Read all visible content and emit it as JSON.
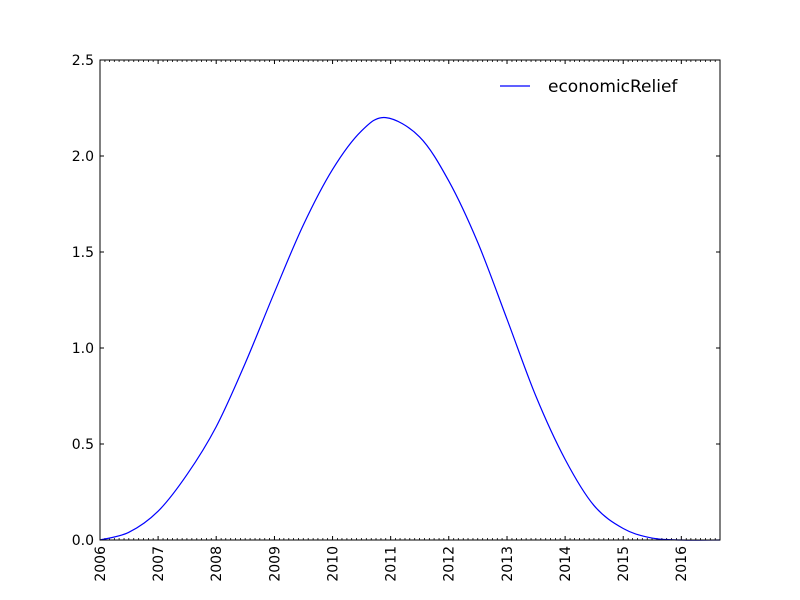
{
  "chart_data": {
    "type": "line",
    "title": "",
    "xlabel": "",
    "ylabel": "",
    "x_ticks": [
      "2006",
      "2007",
      "2008",
      "2009",
      "2010",
      "2011",
      "2012",
      "2013",
      "2014",
      "2015",
      "2016"
    ],
    "xlim": [
      "2006-01-01",
      "2016-08-31"
    ],
    "y_ticks": [
      "0.0",
      "0.5",
      "1.0",
      "1.5",
      "2.0",
      "2.5"
    ],
    "ylim": [
      0.0,
      2.5
    ],
    "grid": false,
    "legend_position": "top-right",
    "x_tick_rotation": "vertical",
    "series": [
      {
        "name": "economicRelief",
        "color": "#0000ff",
        "points": [
          {
            "x": "2006-01-01",
            "y": 0.0
          },
          {
            "x": "2006-07-01",
            "y": 0.04
          },
          {
            "x": "2007-01-01",
            "y": 0.15
          },
          {
            "x": "2007-07-01",
            "y": 0.34
          },
          {
            "x": "2008-01-01",
            "y": 0.59
          },
          {
            "x": "2008-07-01",
            "y": 0.92
          },
          {
            "x": "2009-01-01",
            "y": 1.29
          },
          {
            "x": "2009-07-01",
            "y": 1.64
          },
          {
            "x": "2010-01-01",
            "y": 1.93
          },
          {
            "x": "2010-07-01",
            "y": 2.13
          },
          {
            "x": "2010-12-01",
            "y": 2.2
          },
          {
            "x": "2011-07-01",
            "y": 2.1
          },
          {
            "x": "2012-01-01",
            "y": 1.87
          },
          {
            "x": "2012-07-01",
            "y": 1.55
          },
          {
            "x": "2013-01-01",
            "y": 1.15
          },
          {
            "x": "2013-07-01",
            "y": 0.75
          },
          {
            "x": "2014-01-01",
            "y": 0.42
          },
          {
            "x": "2014-07-01",
            "y": 0.18
          },
          {
            "x": "2015-01-01",
            "y": 0.06
          },
          {
            "x": "2015-07-01",
            "y": 0.01
          },
          {
            "x": "2016-01-01",
            "y": 0.0
          },
          {
            "x": "2016-08-31",
            "y": 0.0
          }
        ]
      }
    ]
  }
}
